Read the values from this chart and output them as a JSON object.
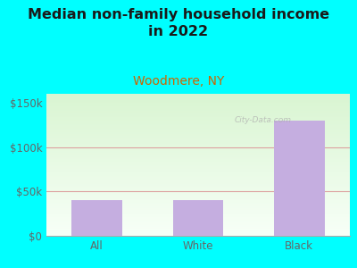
{
  "title": "Median non-family household income\nin 2022",
  "subtitle": "Woodmere, NY",
  "categories": [
    "All",
    "White",
    "Black"
  ],
  "values": [
    40000,
    40000,
    130000
  ],
  "bar_color": "#c5aee0",
  "title_color": "#1a1a1a",
  "subtitle_color": "#cc6600",
  "axis_text_color": "#666666",
  "background_color": "#00ffff",
  "ylim": [
    0,
    160000
  ],
  "yticks": [
    0,
    50000,
    100000,
    150000
  ],
  "ytick_labels": [
    "$0",
    "$50k",
    "$100k",
    "$150k"
  ],
  "grid_color": "#dda0a0",
  "watermark": "City-Data.com",
  "title_fontsize": 11.5,
  "subtitle_fontsize": 10,
  "tick_fontsize": 8.5
}
